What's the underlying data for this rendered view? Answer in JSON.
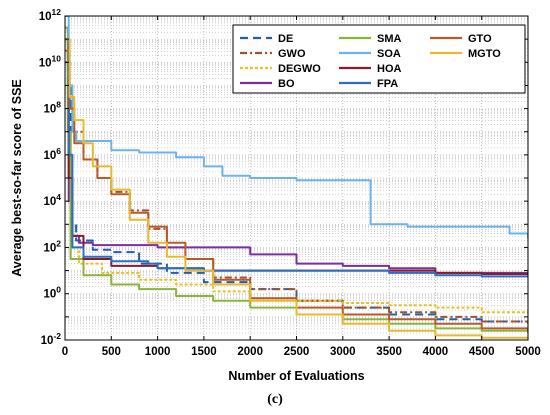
{
  "caption": "(c)",
  "chart_data": {
    "type": "line",
    "xlabel": "Number of Evaluations",
    "ylabel": "Average best-so-far score of SSE",
    "xlim": [
      0,
      5000
    ],
    "ylim_log10": [
      -2,
      12
    ],
    "y_scale": "log",
    "grid": true,
    "legend_position": "top-right",
    "x_ticks": [
      "0",
      "500",
      "1000",
      "1500",
      "2000",
      "2500",
      "3000",
      "3500",
      "4000",
      "4500",
      "5000"
    ],
    "y_ticks": [
      {
        "base": "10",
        "exp": "-2"
      },
      {
        "base": "10",
        "exp": "0"
      },
      {
        "base": "10",
        "exp": "2"
      },
      {
        "base": "10",
        "exp": "4"
      },
      {
        "base": "10",
        "exp": "6"
      },
      {
        "base": "10",
        "exp": "8"
      },
      {
        "base": "10",
        "exp": "10"
      },
      {
        "base": "10",
        "exp": "12"
      }
    ],
    "series": [
      {
        "name": "DE",
        "color": "#1f5fb4",
        "dash": "8,5",
        "points": [
          [
            0,
            11.5
          ],
          [
            30,
            9
          ],
          [
            60,
            3
          ],
          [
            120,
            2.3
          ],
          [
            300,
            1.9
          ],
          [
            500,
            1.8
          ],
          [
            800,
            1.3
          ],
          [
            1100,
            0.9
          ],
          [
            1500,
            0.5
          ],
          [
            2000,
            0.2
          ],
          [
            2500,
            -0.3
          ],
          [
            3000,
            -0.6
          ],
          [
            3500,
            -0.9
          ],
          [
            4000,
            -1.1
          ],
          [
            4500,
            -1.2
          ],
          [
            5000,
            -1.2
          ]
        ]
      },
      {
        "name": "GWO",
        "color": "#a0522d",
        "dash": "7,3,2,3",
        "points": [
          [
            0,
            10
          ],
          [
            50,
            8
          ],
          [
            100,
            7
          ],
          [
            200,
            5.8
          ],
          [
            350,
            5
          ],
          [
            500,
            4.4
          ],
          [
            700,
            3.6
          ],
          [
            900,
            2.8
          ],
          [
            1100,
            2
          ],
          [
            1300,
            1.5
          ],
          [
            1600,
            0.7
          ],
          [
            2000,
            0.2
          ],
          [
            2500,
            -0.3
          ],
          [
            3000,
            -0.6
          ],
          [
            3500,
            -0.8
          ],
          [
            4000,
            -1
          ],
          [
            4500,
            -1.2
          ],
          [
            5000,
            -1.3
          ]
        ]
      },
      {
        "name": "DEGWO",
        "color": "#e8c020",
        "dash": "3,2",
        "points": [
          [
            0,
            11
          ],
          [
            30,
            7
          ],
          [
            60,
            2
          ],
          [
            150,
            1.3
          ],
          [
            400,
            0.9
          ],
          [
            800,
            0.6
          ],
          [
            1200,
            0.4
          ],
          [
            1600,
            0.1
          ],
          [
            2000,
            -0.2
          ],
          [
            2500,
            -0.3
          ],
          [
            3000,
            -0.4
          ],
          [
            3500,
            -0.5
          ],
          [
            4000,
            -0.6
          ],
          [
            4500,
            -0.8
          ],
          [
            5000,
            -0.9
          ]
        ]
      },
      {
        "name": "BO",
        "color": "#7a2fa0",
        "dash": "",
        "points": [
          [
            0,
            11
          ],
          [
            40,
            4
          ],
          [
            80,
            2.5
          ],
          [
            150,
            2.2
          ],
          [
            300,
            2.1
          ],
          [
            500,
            2.1
          ],
          [
            1000,
            2
          ],
          [
            1500,
            2
          ],
          [
            2000,
            1.7
          ],
          [
            2500,
            1.3
          ],
          [
            3000,
            1.2
          ],
          [
            3500,
            1.1
          ],
          [
            4000,
            0.9
          ],
          [
            4500,
            0.9
          ],
          [
            5000,
            0.85
          ]
        ]
      },
      {
        "name": "SMA",
        "color": "#8cb33a",
        "dash": "",
        "points": [
          [
            0,
            11.5
          ],
          [
            30,
            7
          ],
          [
            60,
            1.5
          ],
          [
            200,
            0.8
          ],
          [
            500,
            0.4
          ],
          [
            800,
            0.2
          ],
          [
            1200,
            -0.1
          ],
          [
            1600,
            -0.3
          ],
          [
            2000,
            -0.6
          ],
          [
            2500,
            -0.9
          ],
          [
            3000,
            -1.1
          ],
          [
            3500,
            -1.3
          ],
          [
            4000,
            -1.5
          ],
          [
            4500,
            -1.6
          ],
          [
            5000,
            -1.7
          ]
        ]
      },
      {
        "name": "SOA",
        "color": "#6cb4e8",
        "dash": "",
        "points": [
          [
            0,
            12
          ],
          [
            40,
            9
          ],
          [
            80,
            7
          ],
          [
            120,
            6.6
          ],
          [
            200,
            6.6
          ],
          [
            500,
            6.2
          ],
          [
            800,
            6.1
          ],
          [
            1000,
            6.1
          ],
          [
            1200,
            5.9
          ],
          [
            1500,
            5.5
          ],
          [
            1700,
            5.1
          ],
          [
            2000,
            5
          ],
          [
            2500,
            4.9
          ],
          [
            3000,
            4.9
          ],
          [
            3250,
            4.9
          ],
          [
            3300,
            3
          ],
          [
            3500,
            3
          ],
          [
            3700,
            2.9
          ],
          [
            4000,
            2.9
          ],
          [
            4500,
            2.9
          ],
          [
            4800,
            2.6
          ],
          [
            5000,
            2.4
          ]
        ]
      },
      {
        "name": "HOA",
        "color": "#8b1a2a",
        "dash": "",
        "points": [
          [
            0,
            11
          ],
          [
            40,
            5
          ],
          [
            80,
            2.5
          ],
          [
            200,
            1.5
          ],
          [
            500,
            1.2
          ],
          [
            1000,
            1.1
          ],
          [
            1500,
            1
          ],
          [
            2000,
            1
          ],
          [
            2500,
            1
          ],
          [
            3000,
            1
          ],
          [
            3500,
            1
          ],
          [
            4000,
            0.9
          ],
          [
            4500,
            0.85
          ],
          [
            5000,
            0.8
          ]
        ]
      },
      {
        "name": "FPA",
        "color": "#2a6ec0",
        "dash": "",
        "points": [
          [
            0,
            11
          ],
          [
            40,
            6
          ],
          [
            80,
            2
          ],
          [
            200,
            1.6
          ],
          [
            500,
            1.4
          ],
          [
            900,
            1.3
          ],
          [
            1000,
            1.1
          ],
          [
            1500,
            1
          ],
          [
            2000,
            1
          ],
          [
            2500,
            1
          ],
          [
            3000,
            1
          ],
          [
            3500,
            0.9
          ],
          [
            4000,
            0.8
          ],
          [
            4500,
            0.75
          ],
          [
            5000,
            0.7
          ]
        ]
      },
      {
        "name": "GTO",
        "color": "#b85a28",
        "dash": "",
        "points": [
          [
            0,
            10.5
          ],
          [
            50,
            8
          ],
          [
            100,
            6.5
          ],
          [
            200,
            5.8
          ],
          [
            350,
            5
          ],
          [
            500,
            4.3
          ],
          [
            700,
            3.5
          ],
          [
            900,
            2.9
          ],
          [
            1100,
            2.2
          ],
          [
            1300,
            1.5
          ],
          [
            1600,
            0.6
          ],
          [
            2000,
            -0.2
          ],
          [
            2500,
            -0.6
          ],
          [
            3000,
            -0.9
          ],
          [
            3500,
            -1.1
          ],
          [
            4000,
            -1.3
          ],
          [
            4500,
            -1.5
          ],
          [
            5000,
            -1.6
          ]
        ]
      },
      {
        "name": "MGTO",
        "color": "#e8b830",
        "dash": "",
        "points": [
          [
            0,
            11
          ],
          [
            50,
            8.5
          ],
          [
            100,
            7.5
          ],
          [
            200,
            6.5
          ],
          [
            300,
            5.5
          ],
          [
            500,
            4.5
          ],
          [
            700,
            3.2
          ],
          [
            900,
            2.2
          ],
          [
            1100,
            1.6
          ],
          [
            1300,
            1
          ],
          [
            1600,
            0.4
          ],
          [
            2000,
            -0.3
          ],
          [
            2500,
            -0.9
          ],
          [
            3000,
            -1.3
          ],
          [
            3500,
            -1.6
          ],
          [
            4000,
            -1.8
          ],
          [
            4500,
            -1.9
          ],
          [
            5000,
            -1.95
          ]
        ]
      }
    ]
  }
}
